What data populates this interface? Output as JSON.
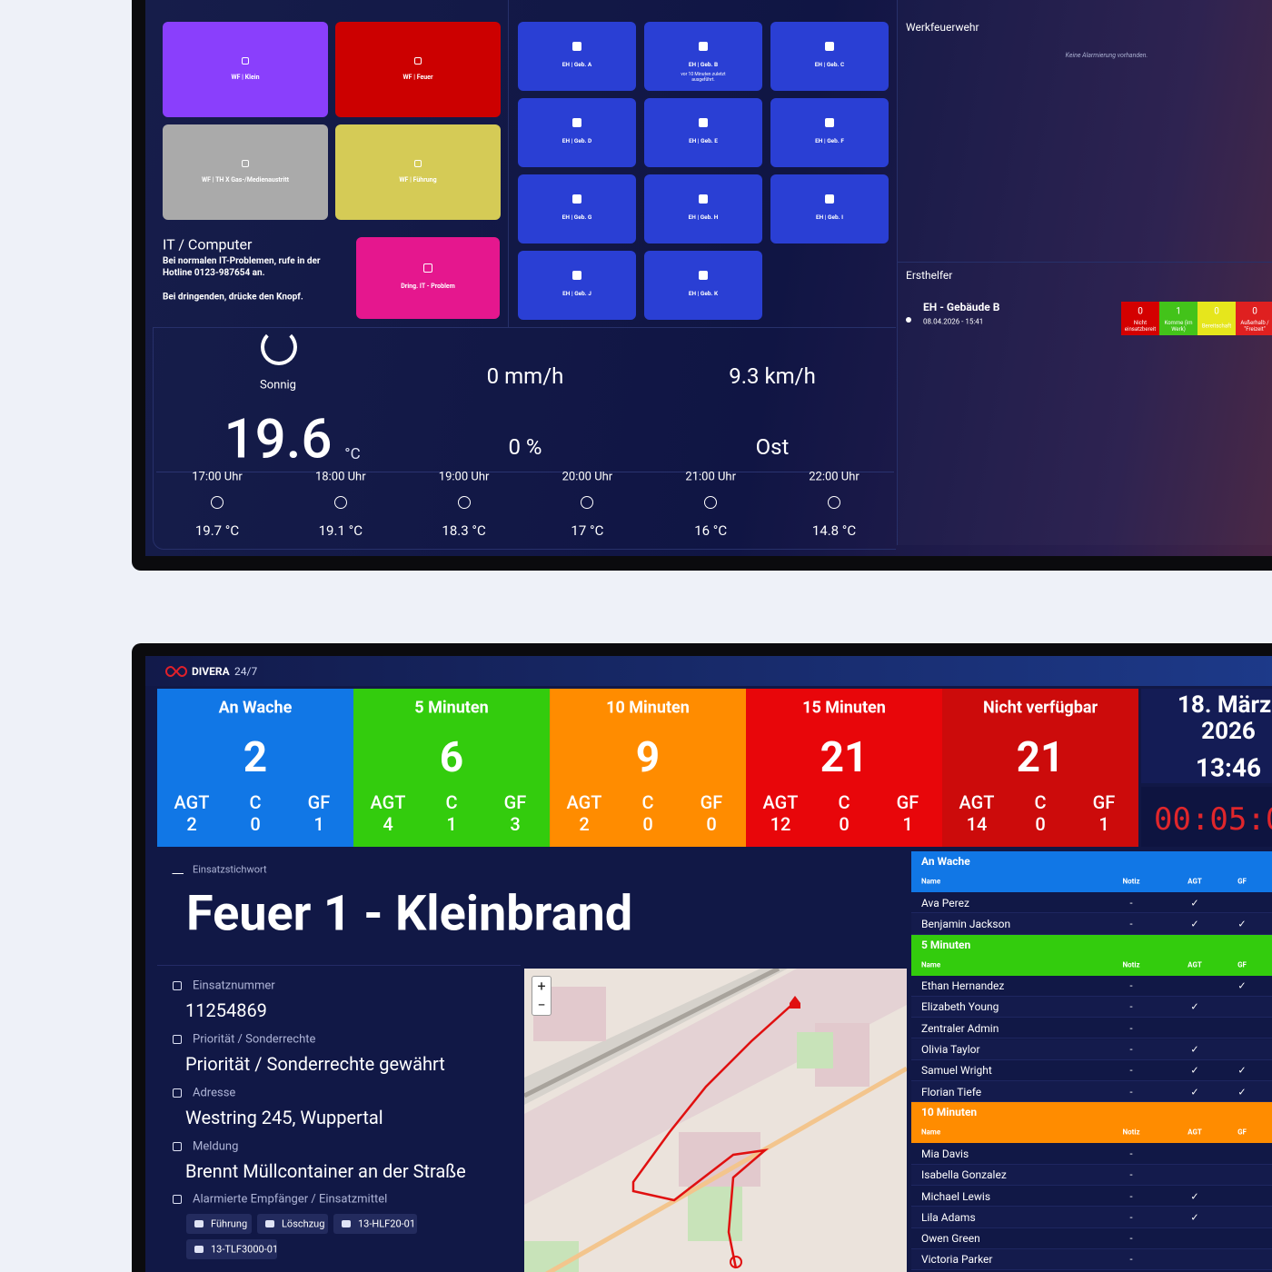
{
  "top": {
    "alarm_buttons": [
      "WF | Klein",
      "WF | Feuer",
      "WF | TH X Gas-/Medienaustritt",
      "WF | Führung"
    ],
    "it": {
      "title": "IT / Computer",
      "text1": "Bei normalen IT-Problemen, rufe in der Hotline 0123-987654 an.",
      "text2": "Bei dringenden, drücke den Knopf.",
      "button": "Dring. IT - Problem"
    },
    "eh_buttons": [
      {
        "label": "EH | Geb. A"
      },
      {
        "label": "EH | Geb. B",
        "sub": "vor 10 Minuten zuletzt ausgeführt."
      },
      {
        "label": "EH | Geb. C"
      },
      {
        "label": "EH | Geb. D"
      },
      {
        "label": "EH | Geb. E"
      },
      {
        "label": "EH | Geb. F"
      },
      {
        "label": "EH | Geb. G"
      },
      {
        "label": "EH | Geb. H"
      },
      {
        "label": "EH | Geb. I"
      },
      {
        "label": "EH | Geb. J"
      },
      {
        "label": "EH | Geb. K"
      }
    ],
    "werkfeuerwehr": {
      "title": "Werkfeuerwehr",
      "empty": "Keine Alarmierung vorhanden."
    },
    "ersthelfer": {
      "title": "Ersthelfer",
      "alarm": "EH - Gebäude B",
      "time": "08.04.2026 - 15:41",
      "statuses": [
        {
          "count": "0",
          "label": "Nicht einsatzbereit"
        },
        {
          "count": "1",
          "label": "Komme (im Werk)"
        },
        {
          "count": "0",
          "label": "Bereitschaft"
        },
        {
          "count": "0",
          "label": "Außerhalb / \"Freizeit\""
        }
      ]
    },
    "weather": {
      "condition": "Sonnig",
      "temp": "19.6",
      "unit": "°C",
      "rain": "0 mm/h",
      "wind": "9.3 km/h",
      "humidity": "0 %",
      "direction": "Ost",
      "forecast": [
        {
          "time": "17:00 Uhr",
          "temp": "19.7 °C"
        },
        {
          "time": "18:00 Uhr",
          "temp": "19.1 °C"
        },
        {
          "time": "19:00 Uhr",
          "temp": "18.3 °C"
        },
        {
          "time": "20:00 Uhr",
          "temp": "17 °C"
        },
        {
          "time": "21:00 Uhr",
          "temp": "16 °C"
        },
        {
          "time": "22:00 Uhr",
          "temp": "14.8 °C"
        }
      ]
    }
  },
  "bottom": {
    "brand": "DIVERA",
    "brand_suffix": "24/7",
    "unit_labels": [
      "AGT",
      "C",
      "GF"
    ],
    "statuses": [
      {
        "title": "An Wache",
        "count": "2",
        "units": [
          "2",
          "0",
          "1"
        ]
      },
      {
        "title": "5 Minuten",
        "count": "6",
        "units": [
          "4",
          "1",
          "3"
        ]
      },
      {
        "title": "10 Minuten",
        "count": "9",
        "units": [
          "2",
          "0",
          "0"
        ]
      },
      {
        "title": "15 Minuten",
        "count": "21",
        "units": [
          "12",
          "0",
          "1"
        ]
      },
      {
        "title": "Nicht verfügbar",
        "count": "21",
        "units": [
          "14",
          "0",
          "1"
        ]
      }
    ],
    "date": "18. März",
    "year": "2026",
    "time": "13:46",
    "timer": "00:05:0",
    "incident": {
      "label": "Einsatzstichwort",
      "keyword": "Feuer 1 - Kleinbrand",
      "fields": [
        {
          "label": "Einsatznummer",
          "value": "11254869"
        },
        {
          "label": "Priorität / Sonderrechte",
          "value": "Priorität / Sonderrechte gewährt"
        },
        {
          "label": "Adresse",
          "value": "Westring 245, Wuppertal"
        },
        {
          "label": "Meldung",
          "value": "Brennt Müllcontainer an der Straße"
        }
      ],
      "recipients_label": "Alarmierte Empfänger / Einsatzmittel",
      "recipients": [
        "Führung",
        "Löschzug",
        "13-HLF20-01",
        "13-TLF3000-01"
      ]
    },
    "map": {
      "zoom_in": "+",
      "zoom_out": "−"
    },
    "roster": {
      "headers": [
        "Name",
        "Notiz",
        "AGT",
        "GF"
      ],
      "groups": [
        {
          "title": "An Wache",
          "rows": [
            [
              "Ava Perez",
              "-",
              "✓",
              ""
            ],
            [
              "Benjamin Jackson",
              "-",
              "✓",
              "✓"
            ]
          ]
        },
        {
          "title": "5 Minuten",
          "rows": [
            [
              "Ethan Hernandez",
              "-",
              "",
              "✓"
            ],
            [
              "Elizabeth Young",
              "-",
              "✓",
              ""
            ],
            [
              "Zentraler Admin",
              "-",
              "",
              ""
            ],
            [
              "Olivia Taylor",
              "-",
              "✓",
              ""
            ],
            [
              "Samuel Wright",
              "-",
              "✓",
              "✓"
            ],
            [
              "Florian Tiefe",
              "-",
              "✓",
              "✓"
            ]
          ]
        },
        {
          "title": "10 Minuten",
          "rows": [
            [
              "Mia Davis",
              "-",
              "",
              ""
            ],
            [
              "Isabella Gonzalez",
              "-",
              "",
              ""
            ],
            [
              "Michael Lewis",
              "-",
              "✓",
              ""
            ],
            [
              "Lila Adams",
              "-",
              "✓",
              ""
            ],
            [
              "Owen Green",
              "-",
              "",
              ""
            ],
            [
              "Victoria Parker",
              "-",
              "",
              ""
            ]
          ]
        }
      ]
    }
  }
}
